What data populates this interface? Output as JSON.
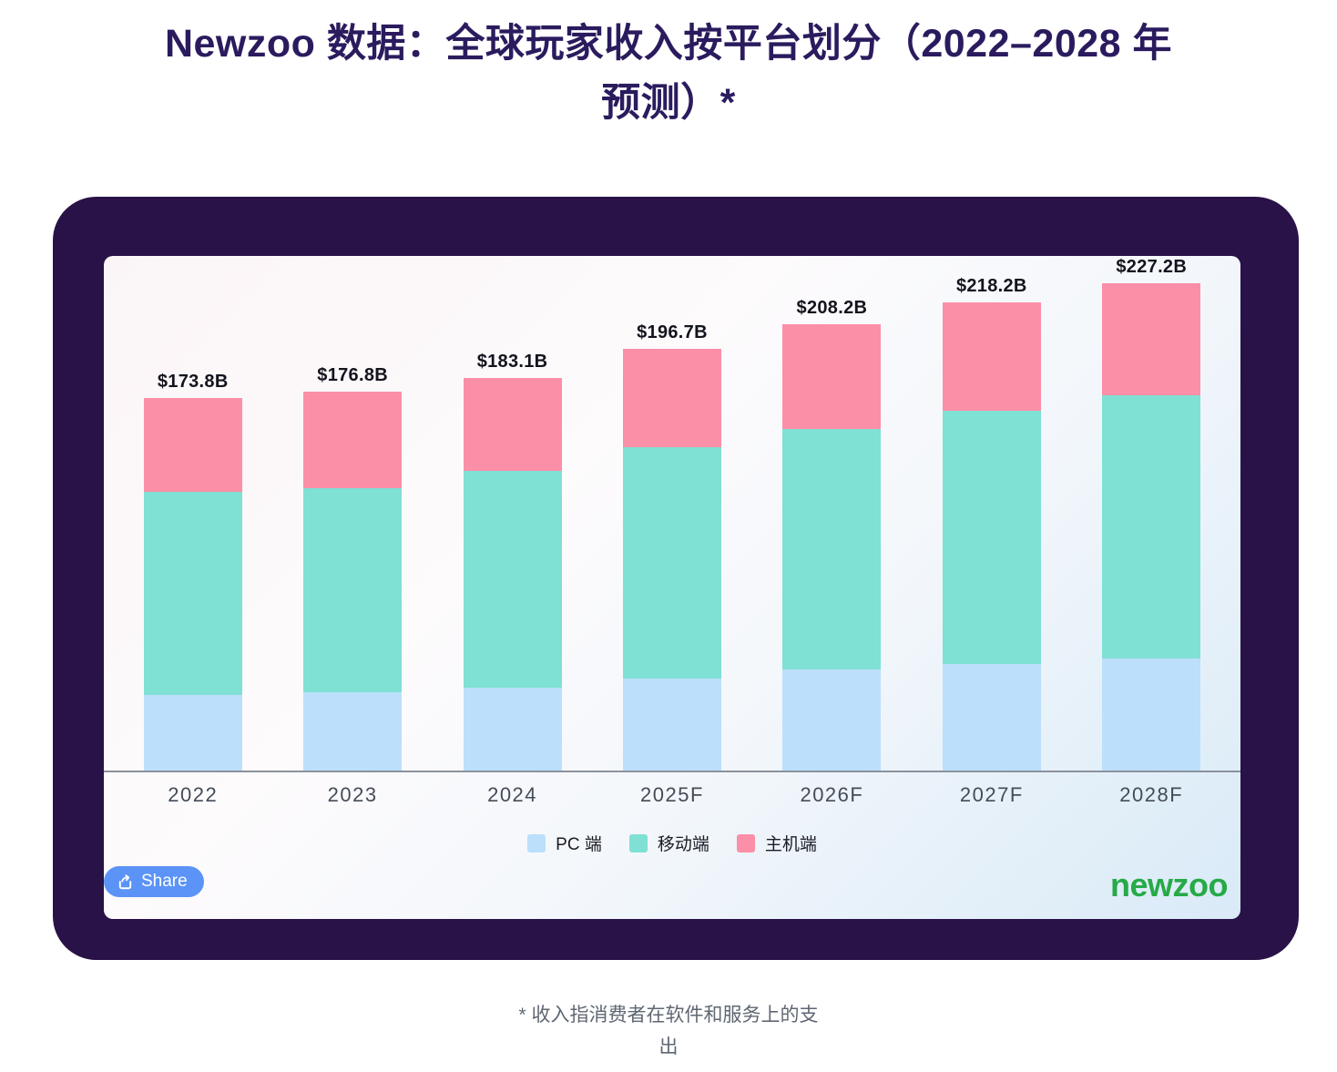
{
  "page": {
    "title": "Newzoo 数据：全球玩家收入按平台划分（2022–2028 年预测）*",
    "footnote": "* 收入指消费者在软件和服务上的支出"
  },
  "card": {
    "share_label": "Share",
    "brand": "newzoo"
  },
  "colors": {
    "card_background": "#291247",
    "title_text": "#2b1b5e",
    "pc_blue": "#bcdffb",
    "mobile_teal": "#7fe0d4",
    "console_pink": "#fb8fa7",
    "share_button_blue": "#5b93f7",
    "brand_green": "#27aa47",
    "axis_gray": "#8b929d"
  },
  "chart_data": {
    "type": "bar",
    "stacked": true,
    "title": "Newzoo 数据：全球玩家收入按平台划分（2022–2028 年预测）*",
    "xlabel": "",
    "ylabel": "",
    "unit": "USD billions",
    "grid": false,
    "legend_position": "bottom",
    "categories": [
      "2022",
      "2023",
      "2024",
      "2025F",
      "2026F",
      "2027F",
      "2028F"
    ],
    "series": [
      {
        "name": "PC 端",
        "color": "#bcdffb",
        "values": [
          35.3,
          36.5,
          38.7,
          42.9,
          47.2,
          49.7,
          52.3
        ]
      },
      {
        "name": "移动端",
        "color": "#7fe0d4",
        "values": [
          94.8,
          95.3,
          101.1,
          107.9,
          112.2,
          118.1,
          122.8
        ]
      },
      {
        "name": "主机端",
        "color": "#fb8fa7",
        "values": [
          43.7,
          45.0,
          43.3,
          45.9,
          48.8,
          50.4,
          52.1
        ]
      }
    ],
    "totals": [
      173.8,
      176.8,
      183.1,
      196.7,
      208.2,
      218.2,
      227.2
    ],
    "total_labels": [
      "$173.8B",
      "$176.8B",
      "$183.1B",
      "$196.7B",
      "$208.2B",
      "$218.2B",
      "$227.2B"
    ],
    "ylim": [
      0,
      240
    ]
  }
}
